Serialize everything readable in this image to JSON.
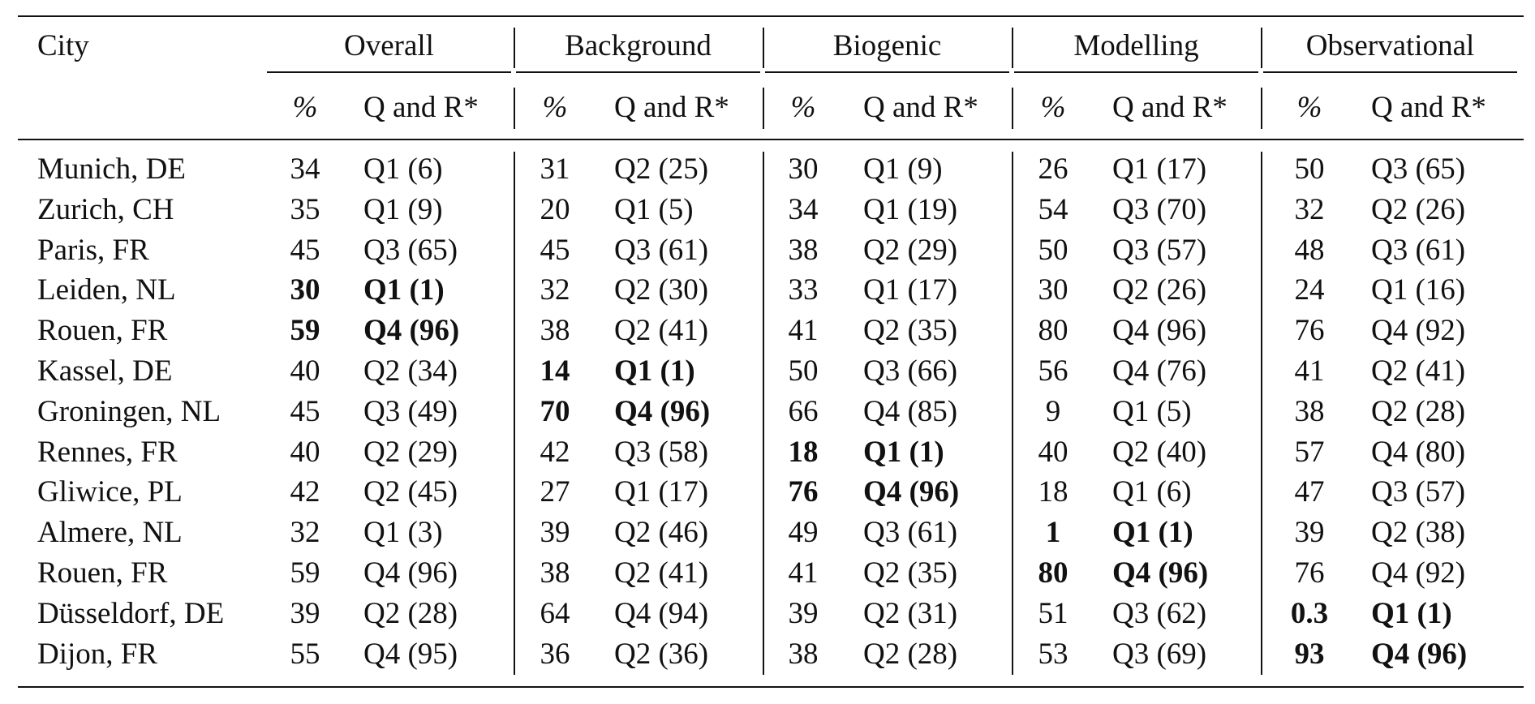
{
  "table": {
    "city_header": "City",
    "groups": [
      "Overall",
      "Background",
      "Biogenic",
      "Modelling",
      "Observational"
    ],
    "subheaders": {
      "pct": "%",
      "qr": "Q and R*"
    },
    "rows": [
      {
        "city": "Munich, DE",
        "cells": [
          {
            "pct": "34",
            "qr": "Q1 (6)"
          },
          {
            "pct": "31",
            "qr": "Q2 (25)"
          },
          {
            "pct": "30",
            "qr": "Q1 (9)"
          },
          {
            "pct": "26",
            "qr": "Q1 (17)"
          },
          {
            "pct": "50",
            "qr": "Q3 (65)"
          }
        ]
      },
      {
        "city": "Zurich, CH",
        "cells": [
          {
            "pct": "35",
            "qr": "Q1 (9)"
          },
          {
            "pct": "20",
            "qr": "Q1 (5)"
          },
          {
            "pct": "34",
            "qr": "Q1 (19)"
          },
          {
            "pct": "54",
            "qr": "Q3 (70)"
          },
          {
            "pct": "32",
            "qr": "Q2 (26)"
          }
        ]
      },
      {
        "city": "Paris, FR",
        "cells": [
          {
            "pct": "45",
            "qr": "Q3 (65)"
          },
          {
            "pct": "45",
            "qr": "Q3 (61)"
          },
          {
            "pct": "38",
            "qr": "Q2 (29)"
          },
          {
            "pct": "50",
            "qr": "Q3 (57)"
          },
          {
            "pct": "48",
            "qr": "Q3 (61)"
          }
        ]
      },
      {
        "city": "Leiden, NL",
        "cells": [
          {
            "pct": "30",
            "qr": "Q1 (1)",
            "bold": true
          },
          {
            "pct": "32",
            "qr": "Q2 (30)"
          },
          {
            "pct": "33",
            "qr": "Q1 (17)"
          },
          {
            "pct": "30",
            "qr": "Q2 (26)"
          },
          {
            "pct": "24",
            "qr": "Q1 (16)"
          }
        ]
      },
      {
        "city": "Rouen, FR",
        "cells": [
          {
            "pct": "59",
            "qr": "Q4 (96)",
            "bold": true
          },
          {
            "pct": "38",
            "qr": "Q2 (41)"
          },
          {
            "pct": "41",
            "qr": "Q2 (35)"
          },
          {
            "pct": "80",
            "qr": "Q4 (96)"
          },
          {
            "pct": "76",
            "qr": "Q4 (92)"
          }
        ]
      },
      {
        "city": "Kassel, DE",
        "cells": [
          {
            "pct": "40",
            "qr": "Q2 (34)"
          },
          {
            "pct": "14",
            "qr": "Q1 (1)",
            "bold": true
          },
          {
            "pct": "50",
            "qr": "Q3 (66)"
          },
          {
            "pct": "56",
            "qr": "Q4 (76)"
          },
          {
            "pct": "41",
            "qr": "Q2 (41)"
          }
        ]
      },
      {
        "city": "Groningen, NL",
        "cells": [
          {
            "pct": "45",
            "qr": "Q3 (49)"
          },
          {
            "pct": "70",
            "qr": "Q4 (96)",
            "bold": true
          },
          {
            "pct": "66",
            "qr": "Q4 (85)"
          },
          {
            "pct": "9",
            "qr": "Q1 (5)"
          },
          {
            "pct": "38",
            "qr": "Q2 (28)"
          }
        ]
      },
      {
        "city": "Rennes, FR",
        "cells": [
          {
            "pct": "40",
            "qr": "Q2 (29)"
          },
          {
            "pct": "42",
            "qr": "Q3 (58)"
          },
          {
            "pct": "18",
            "qr": "Q1 (1)",
            "bold": true
          },
          {
            "pct": "40",
            "qr": "Q2 (40)"
          },
          {
            "pct": "57",
            "qr": "Q4 (80)"
          }
        ]
      },
      {
        "city": "Gliwice, PL",
        "cells": [
          {
            "pct": "42",
            "qr": "Q2 (45)"
          },
          {
            "pct": "27",
            "qr": "Q1 (17)"
          },
          {
            "pct": "76",
            "qr": "Q4 (96)",
            "bold": true
          },
          {
            "pct": "18",
            "qr": "Q1 (6)"
          },
          {
            "pct": "47",
            "qr": "Q3 (57)"
          }
        ]
      },
      {
        "city": "Almere, NL",
        "cells": [
          {
            "pct": "32",
            "qr": "Q1 (3)"
          },
          {
            "pct": "39",
            "qr": "Q2 (46)"
          },
          {
            "pct": "49",
            "qr": "Q3 (61)"
          },
          {
            "pct": "1",
            "qr": "Q1 (1)",
            "bold": true
          },
          {
            "pct": "39",
            "qr": "Q2 (38)"
          }
        ]
      },
      {
        "city": "Rouen, FR",
        "cells": [
          {
            "pct": "59",
            "qr": "Q4 (96)"
          },
          {
            "pct": "38",
            "qr": "Q2 (41)"
          },
          {
            "pct": "41",
            "qr": "Q2 (35)"
          },
          {
            "pct": "80",
            "qr": "Q4 (96)",
            "bold": true
          },
          {
            "pct": "76",
            "qr": "Q4 (92)"
          }
        ]
      },
      {
        "city": "Düsseldorf, DE",
        "cells": [
          {
            "pct": "39",
            "qr": "Q2 (28)"
          },
          {
            "pct": "64",
            "qr": "Q4 (94)"
          },
          {
            "pct": "39",
            "qr": "Q2 (31)"
          },
          {
            "pct": "51",
            "qr": "Q3 (62)"
          },
          {
            "pct": "0.3",
            "qr": "Q1 (1)",
            "bold": true
          }
        ]
      },
      {
        "city": "Dijon, FR",
        "cells": [
          {
            "pct": "55",
            "qr": "Q4 (95)"
          },
          {
            "pct": "36",
            "qr": "Q2 (36)"
          },
          {
            "pct": "38",
            "qr": "Q2 (28)"
          },
          {
            "pct": "53",
            "qr": "Q3 (69)"
          },
          {
            "pct": "93",
            "qr": "Q4 (96)",
            "bold": true
          }
        ]
      }
    ]
  }
}
